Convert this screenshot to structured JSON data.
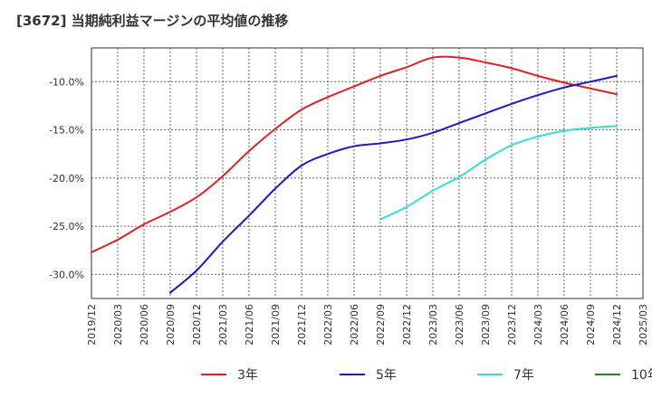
{
  "chart_data": {
    "type": "line",
    "title": "[3672]  当期純利益マージンの平均値の推移",
    "xlabel": "",
    "ylabel": "",
    "x_ticks": [
      "2019/12",
      "2020/03",
      "2020/06",
      "2020/09",
      "2020/12",
      "2021/03",
      "2021/06",
      "2021/09",
      "2021/12",
      "2022/03",
      "2022/06",
      "2022/09",
      "2022/12",
      "2023/03",
      "2023/06",
      "2023/09",
      "2023/12",
      "2024/03",
      "2024/06",
      "2024/09",
      "2024/12",
      "2025/03"
    ],
    "y_ticks": [
      -10.0,
      -15.0,
      -20.0,
      -25.0,
      -30.0
    ],
    "y_tick_format": "percent_1dp",
    "ylim": [
      -32.5,
      -6.5
    ],
    "grid": true,
    "legend_position": "bottom",
    "series": [
      {
        "name": "3年",
        "color": "#dd2222",
        "points": [
          [
            "2019/12",
            -27.7
          ],
          [
            "2020/03",
            -26.4
          ],
          [
            "2020/06",
            -24.8
          ],
          [
            "2020/09",
            -23.5
          ],
          [
            "2020/12",
            -22.0
          ],
          [
            "2021/03",
            -19.8
          ],
          [
            "2021/06",
            -17.2
          ],
          [
            "2021/09",
            -14.9
          ],
          [
            "2021/12",
            -12.9
          ],
          [
            "2022/03",
            -11.6
          ],
          [
            "2022/06",
            -10.5
          ],
          [
            "2022/09",
            -9.4
          ],
          [
            "2022/12",
            -8.5
          ],
          [
            "2023/03",
            -7.5
          ],
          [
            "2023/06",
            -7.5
          ],
          [
            "2023/09",
            -8.0
          ],
          [
            "2023/12",
            -8.6
          ],
          [
            "2024/03",
            -9.4
          ],
          [
            "2024/06",
            -10.1
          ],
          [
            "2024/09",
            -10.7
          ],
          [
            "2024/12",
            -11.3
          ]
        ]
      },
      {
        "name": "5年",
        "color": "#1a1acc",
        "points": [
          [
            "2020/09",
            -31.9
          ],
          [
            "2020/12",
            -29.6
          ],
          [
            "2021/03",
            -26.6
          ],
          [
            "2021/06",
            -23.9
          ],
          [
            "2021/09",
            -21.1
          ],
          [
            "2021/12",
            -18.7
          ],
          [
            "2022/03",
            -17.5
          ],
          [
            "2022/06",
            -16.7
          ],
          [
            "2022/09",
            -16.4
          ],
          [
            "2022/12",
            -16.0
          ],
          [
            "2023/03",
            -15.3
          ],
          [
            "2023/06",
            -14.3
          ],
          [
            "2023/09",
            -13.3
          ],
          [
            "2023/12",
            -12.3
          ],
          [
            "2024/03",
            -11.4
          ],
          [
            "2024/06",
            -10.6
          ],
          [
            "2024/09",
            -10.0
          ],
          [
            "2024/12",
            -9.4
          ]
        ]
      },
      {
        "name": "7年",
        "color": "#33dddd",
        "points": [
          [
            "2022/09",
            -24.3
          ],
          [
            "2022/12",
            -23.0
          ],
          [
            "2023/03",
            -21.3
          ],
          [
            "2023/06",
            -19.9
          ],
          [
            "2023/09",
            -18.1
          ],
          [
            "2023/12",
            -16.6
          ],
          [
            "2024/03",
            -15.7
          ],
          [
            "2024/06",
            -15.1
          ],
          [
            "2024/09",
            -14.8
          ],
          [
            "2024/12",
            -14.6
          ]
        ]
      },
      {
        "name": "10年",
        "color": "#228822",
        "points": []
      }
    ]
  }
}
